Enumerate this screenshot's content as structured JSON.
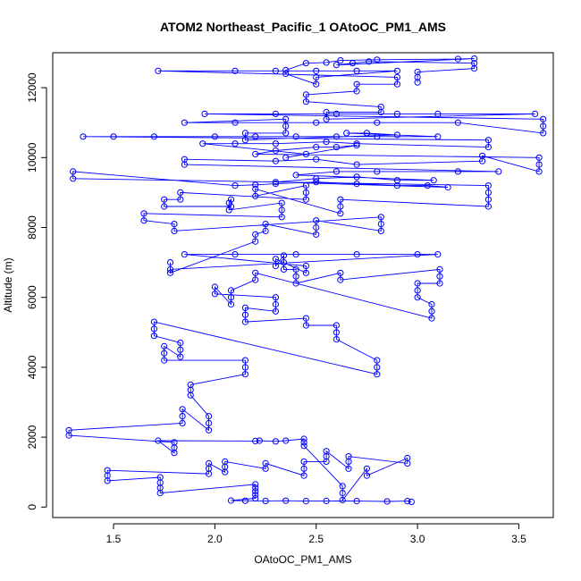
{
  "chart_data": {
    "type": "scatter",
    "title": "ATOM2 Northeast_Pacific_1 OAtoOC_PM1_AMS",
    "xlabel": "OAtoOC_PM1_AMS",
    "ylabel": "Altitude (m)",
    "xlim": [
      1.2,
      3.67
    ],
    "ylim": [
      -300,
      13000
    ],
    "xticks": [
      "1.5",
      "2.0",
      "2.5",
      "3.0",
      "3.5"
    ],
    "xtick_values": [
      1.5,
      2.0,
      2.5,
      3.0,
      3.5
    ],
    "yticks": [
      "0",
      "2000",
      "4000",
      "6000",
      "8000",
      "10000",
      "12000"
    ],
    "ytick_values": [
      0,
      2000,
      4000,
      6000,
      8000,
      10000,
      12000
    ],
    "grid": false,
    "series": [
      {
        "color": "#0000ff",
        "marker": "open-circle",
        "connected": true,
        "points": [
          [
            2.97,
            150
          ],
          [
            2.95,
            170
          ],
          [
            2.85,
            160
          ],
          [
            2.7,
            170
          ],
          [
            2.55,
            175
          ],
          [
            2.45,
            170
          ],
          [
            2.35,
            180
          ],
          [
            2.25,
            175
          ],
          [
            2.15,
            180
          ],
          [
            2.08,
            185
          ],
          [
            2.2,
            250
          ],
          [
            2.2,
            350
          ],
          [
            2.2,
            450
          ],
          [
            2.2,
            550
          ],
          [
            2.2,
            650
          ],
          [
            1.73,
            400
          ],
          [
            1.73,
            550
          ],
          [
            1.73,
            700
          ],
          [
            1.73,
            850
          ],
          [
            1.47,
            750
          ],
          [
            1.47,
            900
          ],
          [
            1.47,
            1050
          ],
          [
            1.97,
            950
          ],
          [
            1.97,
            1100
          ],
          [
            1.97,
            1250
          ],
          [
            2.05,
            1000
          ],
          [
            2.05,
            1150
          ],
          [
            2.05,
            1300
          ],
          [
            2.25,
            1100
          ],
          [
            2.25,
            1250
          ],
          [
            2.44,
            900
          ],
          [
            2.44,
            1100
          ],
          [
            2.44,
            1300
          ],
          [
            2.55,
            1300
          ],
          [
            2.55,
            1450
          ],
          [
            2.55,
            1600
          ],
          [
            2.66,
            1100
          ],
          [
            2.66,
            1300
          ],
          [
            2.66,
            1450
          ],
          [
            2.95,
            1250
          ],
          [
            2.95,
            1400
          ],
          [
            2.75,
            900
          ],
          [
            2.75,
            1100
          ],
          [
            2.63,
            200
          ],
          [
            2.63,
            400
          ],
          [
            2.63,
            600
          ],
          [
            2.44,
            1750
          ],
          [
            2.44,
            1850
          ],
          [
            2.44,
            1950
          ],
          [
            2.35,
            1900
          ],
          [
            2.3,
            1880
          ],
          [
            2.22,
            1900
          ],
          [
            2.2,
            1890
          ],
          [
            1.72,
            1900
          ],
          [
            1.8,
            1550
          ],
          [
            1.8,
            1700
          ],
          [
            1.8,
            1850
          ],
          [
            1.28,
            2050
          ],
          [
            1.28,
            2200
          ],
          [
            1.84,
            2400
          ],
          [
            1.84,
            2600
          ],
          [
            1.84,
            2800
          ],
          [
            1.97,
            2200
          ],
          [
            1.97,
            2400
          ],
          [
            1.97,
            2600
          ],
          [
            1.88,
            3200
          ],
          [
            1.88,
            3350
          ],
          [
            1.88,
            3500
          ],
          [
            2.15,
            3800
          ],
          [
            2.15,
            4000
          ],
          [
            2.15,
            4200
          ],
          [
            1.75,
            4200
          ],
          [
            1.75,
            4400
          ],
          [
            1.75,
            4600
          ],
          [
            1.83,
            4300
          ],
          [
            1.83,
            4500
          ],
          [
            1.83,
            4700
          ],
          [
            1.7,
            4900
          ],
          [
            1.7,
            5100
          ],
          [
            1.7,
            5300
          ],
          [
            2.8,
            3800
          ],
          [
            2.8,
            4000
          ],
          [
            2.8,
            4200
          ],
          [
            2.6,
            4800
          ],
          [
            2.6,
            5000
          ],
          [
            2.6,
            5200
          ],
          [
            2.45,
            5200
          ],
          [
            2.45,
            5400
          ],
          [
            2.15,
            5300
          ],
          [
            2.15,
            5500
          ],
          [
            2.15,
            5700
          ],
          [
            2.3,
            5600
          ],
          [
            2.3,
            5800
          ],
          [
            2.3,
            6000
          ],
          [
            2.0,
            6100
          ],
          [
            2.0,
            6300
          ],
          [
            2.08,
            5800
          ],
          [
            2.08,
            6000
          ],
          [
            2.08,
            6200
          ],
          [
            2.2,
            6500
          ],
          [
            2.2,
            6700
          ],
          [
            3.07,
            5400
          ],
          [
            3.07,
            5600
          ],
          [
            3.07,
            5800
          ],
          [
            3.0,
            6000
          ],
          [
            3.0,
            6200
          ],
          [
            3.0,
            6400
          ],
          [
            3.11,
            6400
          ],
          [
            3.11,
            6600
          ],
          [
            3.11,
            6800
          ],
          [
            2.62,
            6500
          ],
          [
            2.62,
            6700
          ],
          [
            2.4,
            6400
          ],
          [
            2.4,
            6600
          ],
          [
            2.4,
            6800
          ],
          [
            2.34,
            6800
          ],
          [
            2.34,
            7000
          ],
          [
            2.34,
            7200
          ],
          [
            2.3,
            6900
          ],
          [
            2.3,
            7100
          ],
          [
            2.45,
            6700
          ],
          [
            2.45,
            6900
          ],
          [
            1.85,
            7230
          ],
          [
            2.1,
            7230
          ],
          [
            2.4,
            7230
          ],
          [
            2.7,
            7230
          ],
          [
            3.0,
            7230
          ],
          [
            3.1,
            7230
          ],
          [
            1.78,
            6800
          ],
          [
            1.78,
            7000
          ],
          [
            1.78,
            6700
          ],
          [
            2.2,
            7600
          ],
          [
            2.2,
            7800
          ],
          [
            2.25,
            7900
          ],
          [
            2.25,
            8100
          ],
          [
            2.5,
            7800
          ],
          [
            2.5,
            8000
          ],
          [
            2.5,
            8200
          ],
          [
            2.82,
            7900
          ],
          [
            2.82,
            8100
          ],
          [
            2.82,
            8300
          ],
          [
            1.8,
            7900
          ],
          [
            1.8,
            8100
          ],
          [
            1.65,
            8200
          ],
          [
            1.65,
            8400
          ],
          [
            2.33,
            8300
          ],
          [
            2.33,
            8500
          ],
          [
            2.33,
            8700
          ],
          [
            2.07,
            8500
          ],
          [
            2.07,
            8700
          ],
          [
            2.08,
            8800
          ],
          [
            2.08,
            8600
          ],
          [
            1.75,
            8600
          ],
          [
            1.75,
            8800
          ],
          [
            1.83,
            8800
          ],
          [
            1.83,
            9000
          ],
          [
            2.45,
            8800
          ],
          [
            2.45,
            9000
          ],
          [
            2.45,
            9200
          ],
          [
            2.2,
            8900
          ],
          [
            2.2,
            9100
          ],
          [
            2.62,
            8400
          ],
          [
            2.62,
            8600
          ],
          [
            2.62,
            8800
          ],
          [
            3.35,
            8600
          ],
          [
            3.35,
            8800
          ],
          [
            3.35,
            9000
          ],
          [
            3.35,
            9200
          ],
          [
            1.3,
            9400
          ],
          [
            1.3,
            9600
          ],
          [
            2.1,
            9200
          ],
          [
            2.2,
            9220
          ],
          [
            2.3,
            9250
          ],
          [
            2.5,
            9300
          ],
          [
            2.7,
            9250
          ],
          [
            2.9,
            9200
          ],
          [
            3.05,
            9200
          ],
          [
            3.15,
            9150
          ],
          [
            2.3,
            9300
          ],
          [
            2.5,
            9400
          ],
          [
            2.7,
            9450
          ],
          [
            2.9,
            9350
          ],
          [
            3.08,
            9350
          ],
          [
            2.4,
            9500
          ],
          [
            2.6,
            9600
          ],
          [
            2.8,
            9600
          ],
          [
            3.2,
            9600
          ],
          [
            3.4,
            9600
          ],
          [
            1.85,
            9800
          ],
          [
            1.85,
            9950
          ],
          [
            2.3,
            9900
          ],
          [
            2.5,
            9950
          ],
          [
            2.7,
            9800
          ],
          [
            3.32,
            9900
          ],
          [
            3.32,
            10050
          ],
          [
            3.6,
            9600
          ],
          [
            3.6,
            9800
          ],
          [
            3.6,
            10000
          ],
          [
            2.2,
            10100
          ],
          [
            2.3,
            10200
          ],
          [
            2.5,
            10300
          ],
          [
            2.6,
            10300
          ],
          [
            2.7,
            10350
          ],
          [
            2.35,
            10000
          ],
          [
            2.45,
            10100
          ],
          [
            1.94,
            10400
          ],
          [
            2.1,
            10400
          ],
          [
            2.3,
            10400
          ],
          [
            2.55,
            10450
          ],
          [
            2.7,
            10400
          ],
          [
            3.35,
            10300
          ],
          [
            3.35,
            10500
          ],
          [
            1.35,
            10600
          ],
          [
            1.5,
            10600
          ],
          [
            1.7,
            10600
          ],
          [
            2.0,
            10600
          ],
          [
            2.2,
            10600
          ],
          [
            2.4,
            10600
          ],
          [
            2.6,
            10600
          ],
          [
            2.8,
            10600
          ],
          [
            3.1,
            10600
          ],
          [
            2.65,
            10700
          ],
          [
            2.75,
            10700
          ],
          [
            2.9,
            10650
          ],
          [
            2.15,
            10500
          ],
          [
            2.15,
            10700
          ],
          [
            2.35,
            10700
          ],
          [
            2.35,
            10900
          ],
          [
            2.35,
            11100
          ],
          [
            1.85,
            11000
          ],
          [
            2.1,
            11000
          ],
          [
            2.5,
            11000
          ],
          [
            2.8,
            11000
          ],
          [
            3.2,
            11000
          ],
          [
            3.62,
            10700
          ],
          [
            3.62,
            10900
          ],
          [
            3.62,
            11100
          ],
          [
            1.95,
            11250
          ],
          [
            2.3,
            11250
          ],
          [
            2.6,
            11250
          ],
          [
            2.9,
            11250
          ],
          [
            3.1,
            11250
          ],
          [
            3.58,
            11250
          ],
          [
            2.55,
            11100
          ],
          [
            2.55,
            11300
          ],
          [
            2.82,
            11300
          ],
          [
            2.82,
            11450
          ],
          [
            2.45,
            11600
          ],
          [
            2.45,
            11800
          ],
          [
            2.7,
            11900
          ],
          [
            2.7,
            12100
          ],
          [
            2.9,
            12100
          ],
          [
            2.9,
            12300
          ],
          [
            1.72,
            12480
          ],
          [
            2.1,
            12480
          ],
          [
            2.3,
            12480
          ],
          [
            2.5,
            12480
          ],
          [
            2.7,
            12480
          ],
          [
            2.9,
            12480
          ],
          [
            2.5,
            12300
          ],
          [
            2.5,
            12100
          ],
          [
            2.35,
            12400
          ],
          [
            2.35,
            12500
          ],
          [
            2.45,
            12700
          ],
          [
            2.55,
            12720
          ],
          [
            2.62,
            12780
          ],
          [
            2.8,
            12800
          ],
          [
            3.2,
            12820
          ],
          [
            3.28,
            12830
          ],
          [
            2.6,
            12650
          ],
          [
            2.68,
            12700
          ],
          [
            2.76,
            12750
          ],
          [
            3.28,
            12700
          ],
          [
            3.28,
            12550
          ],
          [
            3.0,
            12450
          ],
          [
            3.0,
            12300
          ],
          [
            3.0,
            12150
          ]
        ]
      }
    ]
  }
}
